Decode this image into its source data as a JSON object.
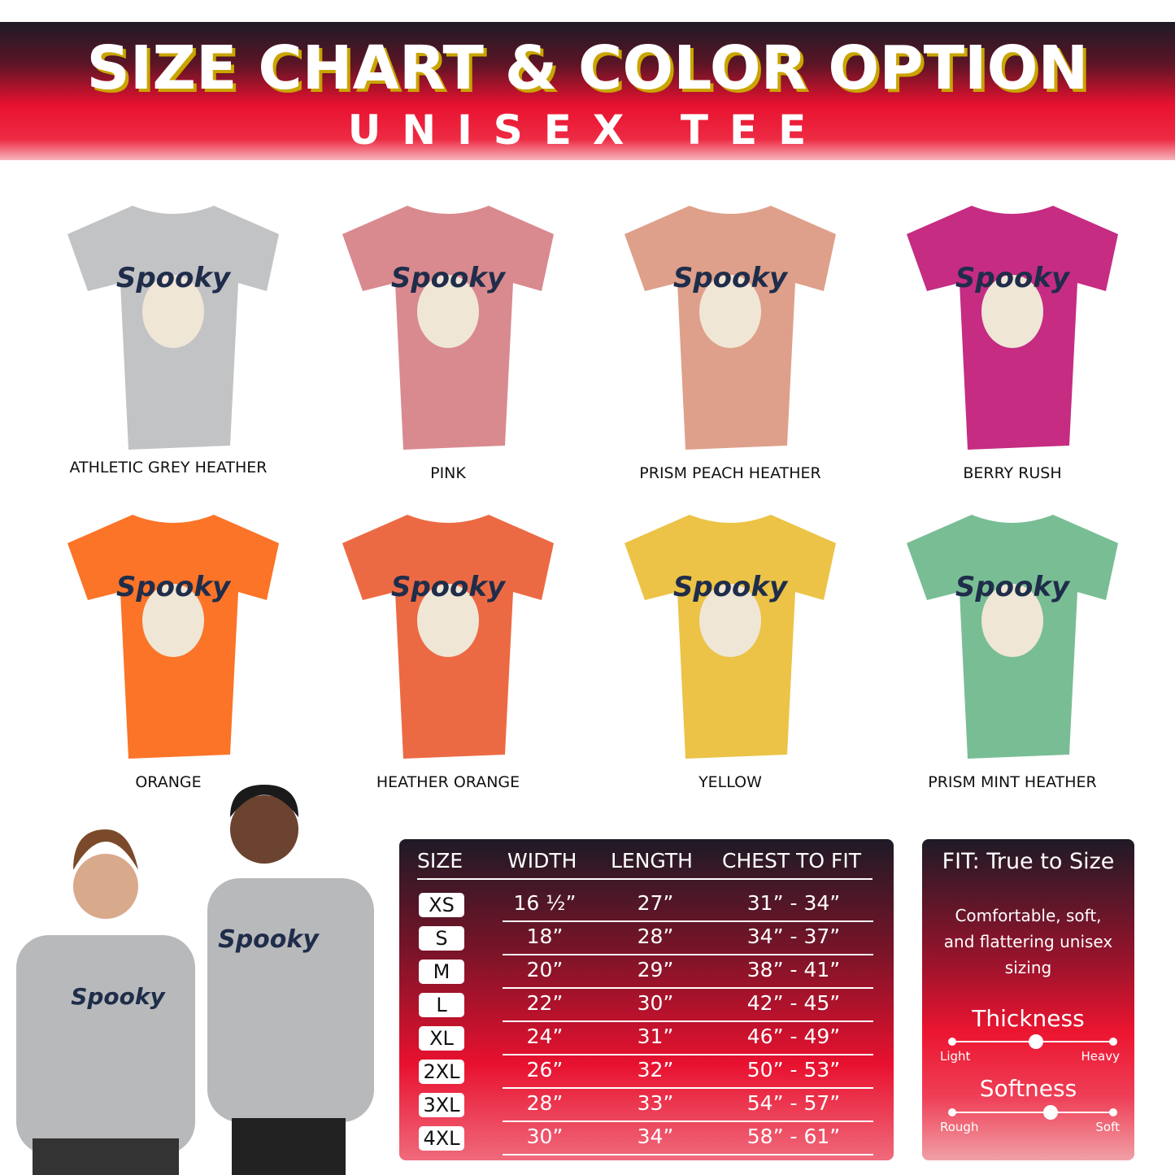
{
  "header": {
    "title": "SIZE CHART & COLOR OPTION",
    "subtitle": "UNISEX TEE"
  },
  "design_text": "Spooky",
  "colors": [
    {
      "name": "ATHLETIC GREY HEATHER",
      "hex": "#c2c3c5"
    },
    {
      "name": "PINK",
      "hex": "#d98a8f"
    },
    {
      "name": "PRISM PEACH HEATHER",
      "hex": "#dea08a"
    },
    {
      "name": "BERRY RUSH",
      "hex": "#c52c82"
    },
    {
      "name": "ORANGE",
      "hex": "#fb7428"
    },
    {
      "name": "HEATHER ORANGE",
      "hex": "#ec6a43"
    },
    {
      "name": "YELLOW",
      "hex": "#ecc347"
    },
    {
      "name": "PRISM MINT HEATHER",
      "hex": "#79bd95"
    }
  ],
  "table": {
    "headers": [
      "SIZE",
      "WIDTH",
      "LENGTH",
      "CHEST TO FIT"
    ],
    "rows": [
      [
        "XS",
        "16 ½”",
        "27”",
        "31” - 34”"
      ],
      [
        "S",
        "18”",
        "28”",
        "34” - 37”"
      ],
      [
        "M",
        "20”",
        "29”",
        "38” - 41”"
      ],
      [
        "L",
        "22”",
        "30”",
        "42” - 45”"
      ],
      [
        "XL",
        "24”",
        "31”",
        "46” - 49”"
      ],
      [
        "2XL",
        "26”",
        "32”",
        "50” - 53”"
      ],
      [
        "3XL",
        "28”",
        "33”",
        "54” - 57”"
      ],
      [
        "4XL",
        "30”",
        "34”",
        "58” - 61”"
      ]
    ]
  },
  "fit": {
    "title": "FIT: True to Size",
    "description": "Comfortable, soft, and flattering unisex sizing",
    "thickness": {
      "label": "Thickness",
      "min": "Light",
      "max": "Heavy",
      "level": 0.52
    },
    "softness": {
      "label": "Softness",
      "min": "Rough",
      "max": "Soft",
      "level": 0.61
    }
  }
}
